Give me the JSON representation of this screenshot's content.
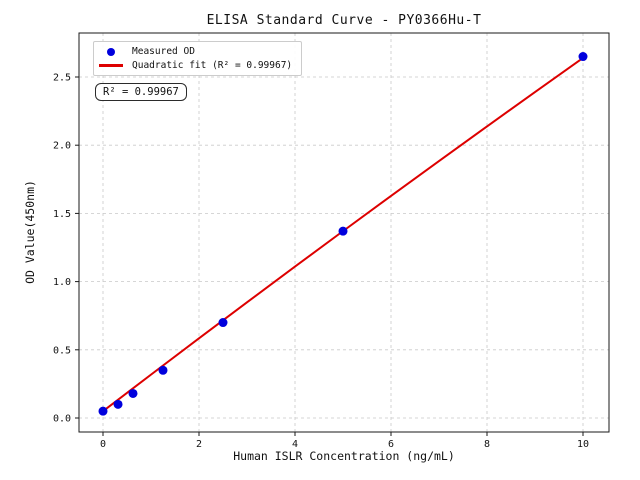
{
  "figure": {
    "title": "ELISA Standard Curve - PY0366Hu-T",
    "xlabel": "Human ISLR Concentration (ng/mL)",
    "ylabel": "OD Value(450nm)"
  },
  "legend": {
    "items": [
      {
        "label": "Measured OD",
        "marker": "dot",
        "color": "#0000dd"
      },
      {
        "label": "Quadratic fit (R² = 0.99967)",
        "marker": "line",
        "color": "#dd0000"
      }
    ]
  },
  "annotation": {
    "text": "R² = 0.99967"
  },
  "chart_data": {
    "type": "scatter",
    "title": "ELISA Standard Curve - PY0366Hu-T",
    "xlabel": "Human ISLR Concentration (ng/mL)",
    "ylabel": "OD Value(450nm)",
    "xlim": [
      -0.5,
      10.5
    ],
    "ylim": [
      -0.1,
      2.82
    ],
    "grid": true,
    "legend_position": "upper left",
    "x_ticks": {
      "values": [
        0,
        2,
        4,
        6,
        8,
        10
      ],
      "labels": [
        "0",
        "2",
        "4",
        "6",
        "8",
        "10"
      ]
    },
    "y_ticks": {
      "values": [
        0,
        0.5,
        1.0,
        1.5,
        2.0,
        2.5
      ],
      "labels": [
        "0.0",
        "0.5",
        "1.0",
        "1.5",
        "2.0",
        "2.5"
      ]
    },
    "series": [
      {
        "name": "Measured OD",
        "type": "scatter",
        "color": "#0000dd",
        "x": [
          0,
          0.313,
          0.625,
          1.25,
          2.5,
          5,
          10
        ],
        "y": [
          0.05,
          0.1,
          0.18,
          0.35,
          0.7,
          1.37,
          2.65
        ]
      },
      {
        "name": "Quadratic fit",
        "type": "line",
        "color": "#dd0000",
        "r_squared": 0.99967,
        "x": [
          0,
          1,
          2,
          3,
          4,
          5,
          6,
          7,
          8,
          9,
          10
        ],
        "y": [
          0.05,
          0.318,
          0.584,
          0.848,
          1.11,
          1.37,
          1.628,
          1.884,
          2.138,
          2.39,
          2.64
        ]
      }
    ]
  }
}
